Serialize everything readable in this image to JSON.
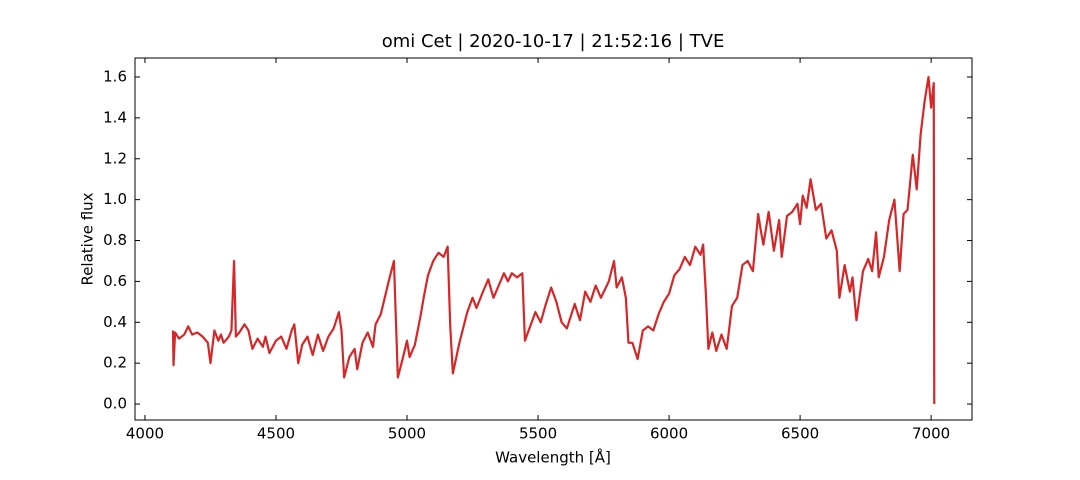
{
  "chart_data": {
    "type": "line",
    "title": "omi Cet | 2020-10-17 | 21:52:16 | TVE",
    "x_label": "Wavelength [Å]",
    "y_label": "Relative flux",
    "color": "#d62728",
    "x": [
      4107,
      4109,
      4115,
      4130,
      4150,
      4165,
      4180,
      4200,
      4220,
      4240,
      4250,
      4265,
      4280,
      4290,
      4300,
      4320,
      4330,
      4340,
      4347,
      4360,
      4380,
      4395,
      4410,
      4430,
      4450,
      4460,
      4475,
      4500,
      4520,
      4540,
      4560,
      4570,
      4585,
      4600,
      4620,
      4640,
      4660,
      4680,
      4700,
      4720,
      4740,
      4750,
      4760,
      4780,
      4800,
      4810,
      4830,
      4850,
      4870,
      4880,
      4900,
      4930,
      4950,
      4965,
      4985,
      5000,
      5010,
      5030,
      5050,
      5065,
      5080,
      5100,
      5120,
      5140,
      5155,
      5165,
      5175,
      5200,
      5230,
      5250,
      5265,
      5290,
      5310,
      5330,
      5350,
      5370,
      5385,
      5400,
      5420,
      5440,
      5450,
      5470,
      5490,
      5510,
      5530,
      5550,
      5570,
      5590,
      5610,
      5640,
      5660,
      5680,
      5700,
      5720,
      5740,
      5770,
      5790,
      5800,
      5820,
      5835,
      5845,
      5860,
      5880,
      5900,
      5920,
      5940,
      5960,
      5980,
      6000,
      6020,
      6040,
      6060,
      6080,
      6100,
      6120,
      6130,
      6140,
      6150,
      6165,
      6180,
      6200,
      6220,
      6240,
      6260,
      6280,
      6300,
      6320,
      6340,
      6350,
      6360,
      6380,
      6400,
      6420,
      6430,
      6450,
      6470,
      6490,
      6500,
      6510,
      6525,
      6540,
      6560,
      6580,
      6600,
      6620,
      6640,
      6650,
      6670,
      6690,
      6700,
      6715,
      6740,
      6760,
      6775,
      6790,
      6800,
      6820,
      6840,
      6860,
      6880,
      6895,
      6910,
      6930,
      6945,
      6960,
      6975,
      6990,
      7000,
      7010,
      7012
    ],
    "values": [
      0.36,
      0.19,
      0.35,
      0.32,
      0.34,
      0.38,
      0.34,
      0.35,
      0.33,
      0.3,
      0.2,
      0.36,
      0.31,
      0.34,
      0.3,
      0.33,
      0.36,
      0.7,
      0.33,
      0.35,
      0.39,
      0.36,
      0.27,
      0.32,
      0.28,
      0.33,
      0.25,
      0.31,
      0.33,
      0.27,
      0.36,
      0.39,
      0.2,
      0.29,
      0.33,
      0.24,
      0.34,
      0.26,
      0.33,
      0.37,
      0.45,
      0.36,
      0.13,
      0.23,
      0.27,
      0.17,
      0.3,
      0.35,
      0.28,
      0.39,
      0.44,
      0.6,
      0.7,
      0.13,
      0.23,
      0.31,
      0.23,
      0.29,
      0.42,
      0.53,
      0.63,
      0.7,
      0.74,
      0.72,
      0.77,
      0.38,
      0.15,
      0.3,
      0.45,
      0.52,
      0.47,
      0.55,
      0.61,
      0.52,
      0.58,
      0.64,
      0.6,
      0.64,
      0.62,
      0.64,
      0.31,
      0.38,
      0.45,
      0.4,
      0.49,
      0.57,
      0.5,
      0.4,
      0.37,
      0.49,
      0.41,
      0.55,
      0.5,
      0.58,
      0.52,
      0.6,
      0.7,
      0.57,
      0.62,
      0.52,
      0.3,
      0.3,
      0.22,
      0.36,
      0.38,
      0.36,
      0.44,
      0.5,
      0.54,
      0.63,
      0.66,
      0.72,
      0.68,
      0.77,
      0.73,
      0.78,
      0.55,
      0.27,
      0.35,
      0.26,
      0.34,
      0.27,
      0.48,
      0.52,
      0.68,
      0.7,
      0.65,
      0.93,
      0.85,
      0.78,
      0.94,
      0.75,
      0.9,
      0.72,
      0.92,
      0.94,
      0.98,
      0.88,
      1.02,
      0.96,
      1.1,
      0.95,
      0.98,
      0.81,
      0.85,
      0.75,
      0.52,
      0.68,
      0.55,
      0.62,
      0.41,
      0.65,
      0.71,
      0.65,
      0.84,
      0.62,
      0.72,
      0.9,
      1.0,
      0.65,
      0.93,
      0.95,
      1.22,
      1.05,
      1.32,
      1.48,
      1.6,
      1.45,
      1.57,
      0.0
    ],
    "xlim": [
      3962,
      7156
    ],
    "ylim": [
      -0.078,
      1.693
    ],
    "xticks": [
      4000,
      4500,
      5000,
      5500,
      6000,
      6500,
      7000
    ],
    "yticks": [
      {
        "value": 0,
        "label": "0.0"
      },
      0.2,
      0.4,
      0.6,
      0.8,
      {
        "value": 1,
        "label": "1.0"
      },
      1.2,
      1.4,
      1.6
    ]
  }
}
